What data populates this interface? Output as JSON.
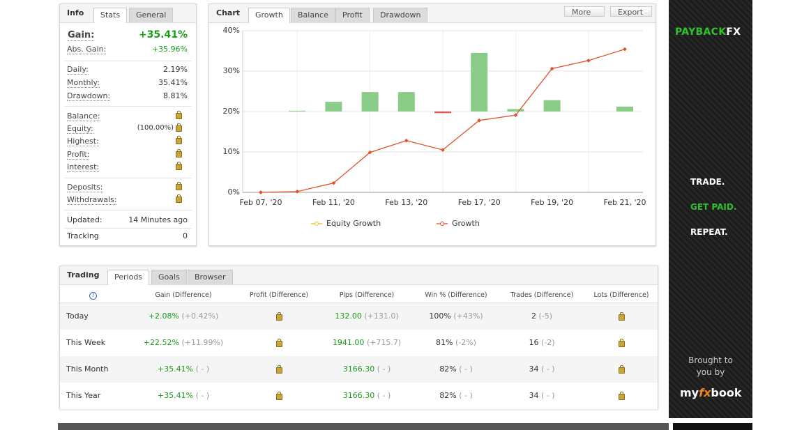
{
  "info": {
    "tabs": [
      "Info",
      "Stats",
      "General"
    ],
    "gain_label": "Gain:",
    "gain": "+35.41%",
    "rows": [
      {
        "label": "Abs. Gain:",
        "value": "+35.96%"
      },
      {
        "label": "Daily:",
        "value": "2.19%"
      },
      {
        "label": "Monthly:",
        "value": "35.41%"
      },
      {
        "label": "Drawdown:",
        "value": "8.81%"
      },
      {
        "label": "Balance:"
      },
      {
        "label": "Equity:",
        "value": "(100.00%)"
      },
      {
        "label": "Highest:"
      },
      {
        "label": "Profit:"
      },
      {
        "label": "Interest:"
      },
      {
        "label": "Deposits:"
      },
      {
        "label": "Withdrawals:"
      },
      {
        "label": "Updated:",
        "value": "14 Minutes ago"
      },
      {
        "label": "Tracking",
        "value": "0"
      }
    ]
  },
  "chart_panel": {
    "title": "Chart",
    "tabs": [
      "Growth",
      "Balance",
      "Profit",
      "Drawdown"
    ],
    "buttons": [
      "More",
      "Export"
    ]
  },
  "chart_data": {
    "type": "line",
    "categories": [
      "Feb 07, '20",
      null,
      "Feb 11, '20",
      null,
      "Feb 13, '20",
      null,
      "Feb 17, '20",
      null,
      "Feb 19, '20",
      null,
      "Feb 21, '20"
    ],
    "series": [
      {
        "name": "Equity Growth",
        "color": "#f0c020",
        "values": [
          null,
          null,
          null,
          null,
          null,
          null,
          null,
          null,
          null,
          null,
          null
        ]
      },
      {
        "name": "Growth",
        "color": "#e0502a",
        "values": [
          0,
          0.2,
          2.3,
          9.9,
          12.8,
          10.5,
          17.8,
          19.1,
          30.6,
          32.6,
          35.41
        ]
      }
    ],
    "bars": {
      "baseline": 20,
      "color": "#88cc88",
      "negative_color": "#e05555",
      "values": [
        null,
        20.2,
        22.4,
        24.8,
        24.8,
        19.6,
        34.5,
        20.6,
        22.8,
        null,
        21.2
      ]
    },
    "ylim": [
      0,
      40
    ],
    "yticks": [
      {
        "value": 0,
        "label": "0%"
      },
      {
        "value": 10,
        "label": "10%"
      },
      {
        "value": 20,
        "label": "20%"
      },
      {
        "value": 30,
        "label": "30%"
      },
      {
        "value": 40,
        "label": "40%"
      }
    ],
    "grid": true
  },
  "trading": {
    "tabs": [
      "Trading",
      "Periods",
      "Goals",
      "Browser"
    ],
    "columns": [
      "Gain (Difference)",
      "Profit (Difference)",
      "Pips (Difference)",
      "Win % (Difference)",
      "Trades (Difference)",
      "Lots (Difference)"
    ],
    "rows": [
      {
        "period": "Today",
        "gain": "+2.08%",
        "gain_diff": "(+0.42%)",
        "pips": "132.00",
        "pips_diff": "(+131.0)",
        "win": "100%",
        "win_diff": "(+43%)",
        "trades": "2",
        "trades_diff": "(-5)"
      },
      {
        "period": "This Week",
        "gain": "+22.52%",
        "gain_diff": "(+11.99%)",
        "pips": "1941.00",
        "pips_diff": "(+715.7)",
        "win": "81%",
        "win_diff": "(-2%)",
        "trades": "16",
        "trades_diff": "(-2)"
      },
      {
        "period": "This Month",
        "gain": "+35.41%",
        "gain_diff": "( - )",
        "pips": "3166.30",
        "pips_diff": "( - )",
        "win": "82%",
        "win_diff": "( - )",
        "trades": "34",
        "trades_diff": "( - )"
      },
      {
        "period": "This Year",
        "gain": "+35.41%",
        "gain_diff": "( - )",
        "pips": "3166.30",
        "pips_diff": "( - )",
        "win": "82%",
        "win_diff": "( - )",
        "trades": "34",
        "trades_diff": "( - )"
      }
    ]
  },
  "ad": {
    "brand": [
      "PAYBACK",
      "FX"
    ],
    "lines": [
      "TRADE.",
      "GET PAID.",
      "REPEAT."
    ],
    "brought": "Brought to you by",
    "logo": [
      "my",
      "fx",
      "book"
    ]
  }
}
